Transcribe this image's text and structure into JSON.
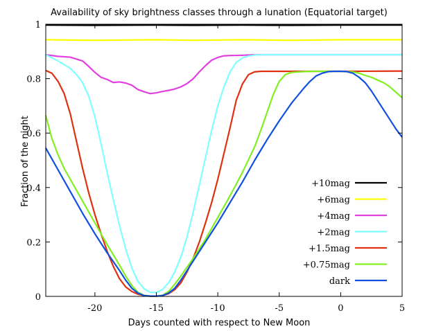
{
  "chart_data": {
    "type": "line",
    "title": "Availability of sky brightness classes through a lunation (Equatorial target)",
    "xlabel": "Days counted with respect to New Moon",
    "ylabel": "Fraction of the night",
    "xlim": [
      -24,
      5
    ],
    "ylim": [
      0,
      1
    ],
    "x_ticks": [
      -20,
      -15,
      -10,
      -5,
      0,
      5
    ],
    "y_ticks": [
      0,
      0.2,
      0.4,
      0.6,
      0.8,
      1
    ],
    "y_tick_labels": [
      "0",
      "0.2",
      "0.4",
      "0.6",
      "0.8",
      "1"
    ],
    "grid": false,
    "legend_position": "right",
    "series": [
      {
        "name": "+10mag",
        "color": "#000000",
        "points": [
          [
            -24,
            0.997
          ],
          [
            -20,
            0.996
          ],
          [
            -15,
            0.997
          ],
          [
            -12,
            0.996
          ],
          [
            -8,
            0.997
          ],
          [
            -4,
            0.996
          ],
          [
            0,
            0.997
          ],
          [
            5,
            0.997
          ]
        ]
      },
      {
        "name": "+6mag",
        "color": "#ffff00",
        "points": [
          [
            -24,
            0.943
          ],
          [
            -20,
            0.941
          ],
          [
            -15,
            0.943
          ],
          [
            -12,
            0.941
          ],
          [
            -8,
            0.943
          ],
          [
            -4,
            0.941
          ],
          [
            0,
            0.943
          ],
          [
            5,
            0.943
          ]
        ]
      },
      {
        "name": "+4mag",
        "color": "#e040e0",
        "points": [
          [
            -24,
            0.888
          ],
          [
            -23,
            0.882
          ],
          [
            -22,
            0.879
          ],
          [
            -21,
            0.865
          ],
          [
            -20.5,
            0.845
          ],
          [
            -20,
            0.823
          ],
          [
            -19.5,
            0.805
          ],
          [
            -19,
            0.797
          ],
          [
            -18.5,
            0.786
          ],
          [
            -18,
            0.788
          ],
          [
            -17.5,
            0.784
          ],
          [
            -17,
            0.776
          ],
          [
            -16.5,
            0.76
          ],
          [
            -16,
            0.752
          ],
          [
            -15.5,
            0.745
          ],
          [
            -15,
            0.748
          ],
          [
            -14.5,
            0.753
          ],
          [
            -14,
            0.757
          ],
          [
            -13.5,
            0.762
          ],
          [
            -13,
            0.77
          ],
          [
            -12.5,
            0.782
          ],
          [
            -12,
            0.8
          ],
          [
            -11.5,
            0.825
          ],
          [
            -11,
            0.848
          ],
          [
            -10.5,
            0.868
          ],
          [
            -10,
            0.878
          ],
          [
            -9.5,
            0.884
          ],
          [
            -9,
            0.885
          ],
          [
            -8,
            0.886
          ],
          [
            -7,
            0.888
          ],
          [
            -6,
            0.888
          ],
          [
            0,
            0.888
          ],
          [
            5,
            0.888
          ]
        ]
      },
      {
        "name": "+2mag",
        "color": "#80ffff",
        "points": [
          [
            -24,
            0.888
          ],
          [
            -23,
            0.865
          ],
          [
            -22,
            0.838
          ],
          [
            -21.5,
            0.815
          ],
          [
            -21,
            0.785
          ],
          [
            -20.5,
            0.735
          ],
          [
            -20,
            0.66
          ],
          [
            -19.5,
            0.56
          ],
          [
            -19,
            0.455
          ],
          [
            -18.5,
            0.355
          ],
          [
            -18,
            0.26
          ],
          [
            -17.5,
            0.175
          ],
          [
            -17,
            0.105
          ],
          [
            -16.5,
            0.055
          ],
          [
            -16,
            0.028
          ],
          [
            -15.5,
            0.015
          ],
          [
            -15,
            0.014
          ],
          [
            -14.5,
            0.025
          ],
          [
            -14,
            0.05
          ],
          [
            -13.5,
            0.09
          ],
          [
            -13,
            0.145
          ],
          [
            -12.5,
            0.22
          ],
          [
            -12,
            0.31
          ],
          [
            -11.5,
            0.41
          ],
          [
            -11,
            0.51
          ],
          [
            -10.5,
            0.61
          ],
          [
            -10,
            0.7
          ],
          [
            -9.5,
            0.77
          ],
          [
            -9,
            0.825
          ],
          [
            -8.5,
            0.86
          ],
          [
            -8,
            0.876
          ],
          [
            -7.5,
            0.883
          ],
          [
            -7,
            0.887
          ],
          [
            -6,
            0.888
          ],
          [
            0,
            0.888
          ],
          [
            5,
            0.888
          ]
        ]
      },
      {
        "name": "+1.5mag",
        "color": "#e03010",
        "points": [
          [
            -24,
            0.83
          ],
          [
            -23.5,
            0.82
          ],
          [
            -23,
            0.79
          ],
          [
            -22.5,
            0.745
          ],
          [
            -22,
            0.67
          ],
          [
            -21.5,
            0.57
          ],
          [
            -21,
            0.47
          ],
          [
            -20.5,
            0.38
          ],
          [
            -20,
            0.3
          ],
          [
            -19.5,
            0.23
          ],
          [
            -19,
            0.165
          ],
          [
            -18.5,
            0.11
          ],
          [
            -18,
            0.065
          ],
          [
            -17.5,
            0.035
          ],
          [
            -17,
            0.018
          ],
          [
            -16.5,
            0.008
          ],
          [
            -16,
            0.003
          ],
          [
            -15.5,
            0.001
          ],
          [
            -15,
            0.001
          ],
          [
            -14.5,
            0.003
          ],
          [
            -14,
            0.01
          ],
          [
            -13.5,
            0.025
          ],
          [
            -13,
            0.05
          ],
          [
            -12.5,
            0.09
          ],
          [
            -12,
            0.14
          ],
          [
            -11.5,
            0.2
          ],
          [
            -11,
            0.27
          ],
          [
            -10.5,
            0.345
          ],
          [
            -10,
            0.43
          ],
          [
            -9.5,
            0.525
          ],
          [
            -9,
            0.62
          ],
          [
            -8.5,
            0.72
          ],
          [
            -8,
            0.78
          ],
          [
            -7.5,
            0.815
          ],
          [
            -7,
            0.825
          ],
          [
            -6.5,
            0.827
          ],
          [
            -6,
            0.827
          ],
          [
            0,
            0.827
          ],
          [
            5,
            0.828
          ]
        ]
      },
      {
        "name": "+0.75mag",
        "color": "#80f020",
        "points": [
          [
            -24,
            0.665
          ],
          [
            -23.5,
            0.58
          ],
          [
            -23,
            0.52
          ],
          [
            -22.5,
            0.47
          ],
          [
            -22,
            0.43
          ],
          [
            -21,
            0.35
          ],
          [
            -20,
            0.27
          ],
          [
            -19,
            0.19
          ],
          [
            -18,
            0.115
          ],
          [
            -17.5,
            0.075
          ],
          [
            -17,
            0.04
          ],
          [
            -16.5,
            0.015
          ],
          [
            -16,
            0.004
          ],
          [
            -15.5,
            0.001
          ],
          [
            -15,
            0.001
          ],
          [
            -14.5,
            0.004
          ],
          [
            -14,
            0.018
          ],
          [
            -13.5,
            0.045
          ],
          [
            -13,
            0.075
          ],
          [
            -12,
            0.14
          ],
          [
            -11,
            0.21
          ],
          [
            -10,
            0.29
          ],
          [
            -9,
            0.37
          ],
          [
            -8,
            0.455
          ],
          [
            -7,
            0.55
          ],
          [
            -6.5,
            0.61
          ],
          [
            -6,
            0.675
          ],
          [
            -5.5,
            0.74
          ],
          [
            -5,
            0.79
          ],
          [
            -4.5,
            0.815
          ],
          [
            -4,
            0.823
          ],
          [
            -3,
            0.826
          ],
          [
            -2,
            0.827
          ],
          [
            0,
            0.827
          ],
          [
            1,
            0.825
          ],
          [
            1.5,
            0.82
          ],
          [
            2,
            0.812
          ],
          [
            2.5,
            0.805
          ],
          [
            3,
            0.795
          ],
          [
            3.5,
            0.785
          ],
          [
            4,
            0.77
          ],
          [
            4.5,
            0.75
          ],
          [
            5,
            0.73
          ]
        ]
      },
      {
        "name": "dark",
        "color": "#1050e0",
        "points": [
          [
            -24,
            0.545
          ],
          [
            -23,
            0.465
          ],
          [
            -22,
            0.385
          ],
          [
            -21,
            0.305
          ],
          [
            -20,
            0.23
          ],
          [
            -19,
            0.16
          ],
          [
            -18,
            0.095
          ],
          [
            -17.5,
            0.06
          ],
          [
            -17,
            0.03
          ],
          [
            -16.5,
            0.012
          ],
          [
            -16,
            0.003
          ],
          [
            -15.5,
            0.001
          ],
          [
            -15,
            0.001
          ],
          [
            -14.5,
            0.003
          ],
          [
            -14,
            0.012
          ],
          [
            -13.5,
            0.03
          ],
          [
            -13,
            0.06
          ],
          [
            -12.5,
            0.095
          ],
          [
            -12,
            0.13
          ],
          [
            -11,
            0.2
          ],
          [
            -10,
            0.27
          ],
          [
            -9,
            0.345
          ],
          [
            -8,
            0.42
          ],
          [
            -7,
            0.5
          ],
          [
            -6,
            0.575
          ],
          [
            -5,
            0.645
          ],
          [
            -4,
            0.71
          ],
          [
            -3,
            0.765
          ],
          [
            -2.5,
            0.79
          ],
          [
            -2,
            0.81
          ],
          [
            -1.5,
            0.82
          ],
          [
            -1,
            0.826
          ],
          [
            -0.5,
            0.827
          ],
          [
            0,
            0.827
          ],
          [
            0.5,
            0.826
          ],
          [
            1,
            0.82
          ],
          [
            1.5,
            0.805
          ],
          [
            2,
            0.785
          ],
          [
            2.5,
            0.755
          ],
          [
            3,
            0.72
          ],
          [
            3.5,
            0.685
          ],
          [
            4,
            0.65
          ],
          [
            4.5,
            0.615
          ],
          [
            5,
            0.585
          ]
        ]
      }
    ]
  }
}
